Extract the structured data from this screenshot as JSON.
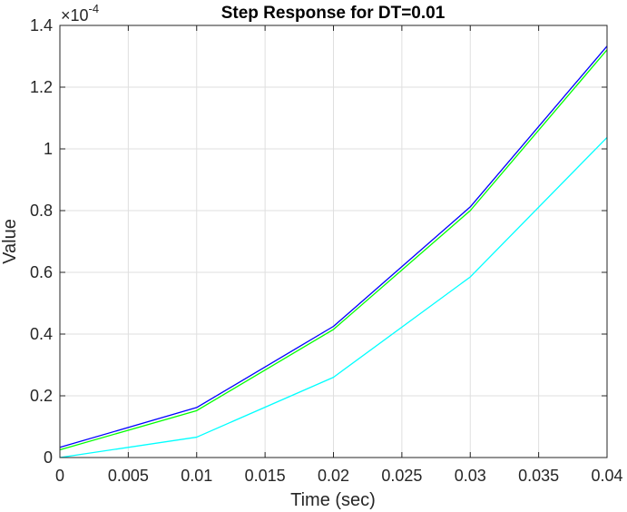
{
  "chart_data": {
    "type": "line",
    "title": "Step Response for DT=0.01",
    "xlabel": "Time (sec)",
    "ylabel": "Value",
    "xlim": [
      0,
      0.04
    ],
    "ylim": [
      0,
      0.00014
    ],
    "y_exponent_label": "10",
    "y_exponent_power": "-4",
    "y_exponent_times": "×",
    "grid": true,
    "x_ticks": [
      0,
      0.005,
      0.01,
      0.015,
      0.02,
      0.025,
      0.03,
      0.035,
      0.04
    ],
    "x_tick_labels": [
      "0",
      "0.005",
      "0.01",
      "0.015",
      "0.02",
      "0.025",
      "0.03",
      "0.035",
      "0.04"
    ],
    "y_ticks": [
      0,
      2e-05,
      4e-05,
      6e-05,
      8e-05,
      0.0001,
      0.00012,
      0.00014
    ],
    "y_tick_labels": [
      "0",
      "0.2",
      "0.4",
      "0.6",
      "0.8",
      "1",
      "1.2",
      "1.4"
    ],
    "x": [
      0,
      0.01,
      0.02,
      0.03,
      0.04
    ],
    "series": [
      {
        "color": "#0000ff",
        "values": [
          3.3e-06,
          1.62e-05,
          4.25e-05,
          8.12e-05,
          0.0001333
        ]
      },
      {
        "color": "#00ff00",
        "values": [
          2.5e-06,
          1.52e-05,
          4.15e-05,
          8e-05,
          0.0001321
        ]
      },
      {
        "color": "#00ffff",
        "values": [
          0.0,
          6.6e-06,
          2.6e-05,
          5.85e-05,
          0.0001037
        ]
      }
    ],
    "colors": {
      "grid": "#dfdfdf",
      "axes": "#262626",
      "background": "#ffffff"
    }
  }
}
